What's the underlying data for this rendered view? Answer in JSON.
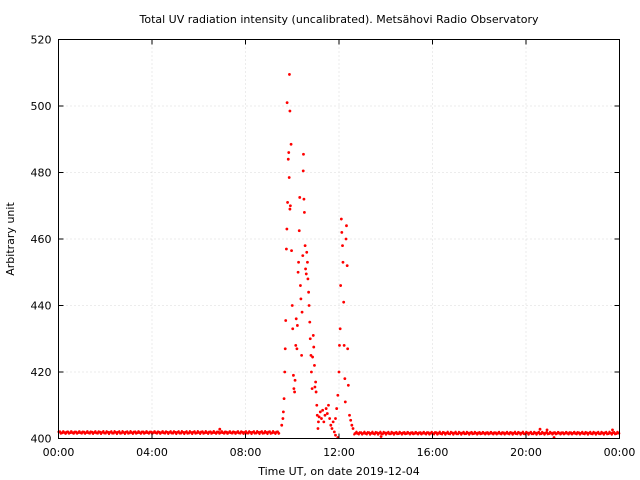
{
  "chart_data": {
    "type": "scatter",
    "title": "Total UV radiation intensity (uncalibrated). Metsähovi Radio Observatory",
    "xlabel": "Time UT, on date 2019-12-04",
    "ylabel": "Arbitrary unit",
    "xlim": [
      0,
      24
    ],
    "ylim": [
      400,
      520
    ],
    "x_ticks": [
      0,
      4,
      8,
      12,
      16,
      20,
      24
    ],
    "x_tick_labels": [
      "00:00",
      "04:00",
      "08:00",
      "12:00",
      "16:00",
      "20:00",
      "00:00"
    ],
    "y_ticks": [
      400,
      420,
      440,
      460,
      480,
      500,
      520
    ],
    "y_tick_labels": [
      "400",
      "420",
      "440",
      "460",
      "480",
      "500",
      "520"
    ],
    "grid": true,
    "marker_color": "#ff0000",
    "baseline": {
      "from_x": 0.0,
      "to_x": 9.45,
      "y": 401.8,
      "from_x_2": 12.65,
      "to_x_2": 24.0,
      "y_2": 401.6
    },
    "series": [
      {
        "values": [
          [
            6.9,
            402.8
          ],
          [
            20.6,
            402.8
          ],
          [
            20.9,
            402.6
          ],
          [
            23.7,
            402.6
          ],
          [
            21.2,
            400.3
          ],
          [
            13.8,
            400.6
          ],
          [
            9.55,
            404
          ],
          [
            9.6,
            406
          ],
          [
            9.62,
            408
          ],
          [
            9.65,
            412
          ],
          [
            9.68,
            420
          ],
          [
            9.7,
            427
          ],
          [
            9.72,
            435.5
          ],
          [
            9.75,
            457
          ],
          [
            9.77,
            463
          ],
          [
            9.8,
            471
          ],
          [
            9.83,
            484
          ],
          [
            9.85,
            486
          ],
          [
            9.87,
            478.5
          ],
          [
            9.9,
            469
          ],
          [
            9.92,
            470
          ],
          [
            9.78,
            501
          ],
          [
            9.88,
            509.5
          ],
          [
            9.9,
            498.5
          ],
          [
            9.95,
            488.5
          ],
          [
            9.97,
            456.5
          ],
          [
            10.0,
            440
          ],
          [
            10.02,
            433
          ],
          [
            10.05,
            419
          ],
          [
            10.07,
            415
          ],
          [
            10.1,
            414
          ],
          [
            10.12,
            417.5
          ],
          [
            10.15,
            428
          ],
          [
            10.17,
            436
          ],
          [
            10.2,
            427
          ],
          [
            10.22,
            434
          ],
          [
            10.25,
            450
          ],
          [
            10.27,
            453
          ],
          [
            10.3,
            462.5
          ],
          [
            10.32,
            472.5
          ],
          [
            10.35,
            446
          ],
          [
            10.37,
            442
          ],
          [
            10.4,
            425
          ],
          [
            10.42,
            438
          ],
          [
            10.45,
            455
          ],
          [
            10.47,
            480.5
          ],
          [
            10.48,
            485.5
          ],
          [
            10.5,
            472
          ],
          [
            10.52,
            468
          ],
          [
            10.55,
            458
          ],
          [
            10.57,
            451
          ],
          [
            10.6,
            449.5
          ],
          [
            10.62,
            456
          ],
          [
            10.65,
            453
          ],
          [
            10.67,
            448
          ],
          [
            10.7,
            444
          ],
          [
            10.72,
            440
          ],
          [
            10.75,
            435
          ],
          [
            10.77,
            430
          ],
          [
            10.8,
            425
          ],
          [
            10.82,
            420
          ],
          [
            10.85,
            415
          ],
          [
            10.87,
            424.5
          ],
          [
            10.9,
            431
          ],
          [
            10.92,
            427.5
          ],
          [
            10.95,
            422
          ],
          [
            10.97,
            415.5
          ],
          [
            11.0,
            417
          ],
          [
            11.02,
            414
          ],
          [
            11.05,
            410
          ],
          [
            11.07,
            407
          ],
          [
            11.1,
            403
          ],
          [
            11.12,
            405
          ],
          [
            11.15,
            406.5
          ],
          [
            11.2,
            408
          ],
          [
            11.25,
            406
          ],
          [
            11.3,
            408.5
          ],
          [
            11.35,
            405
          ],
          [
            11.4,
            407
          ],
          [
            11.45,
            409
          ],
          [
            11.5,
            407.5
          ],
          [
            11.55,
            410
          ],
          [
            11.6,
            406
          ],
          [
            11.65,
            404
          ],
          [
            11.7,
            403
          ],
          [
            11.75,
            405
          ],
          [
            11.8,
            402
          ],
          [
            11.85,
            406
          ],
          [
            11.9,
            409
          ],
          [
            11.95,
            413
          ],
          [
            12.0,
            420
          ],
          [
            12.02,
            428
          ],
          [
            12.05,
            433
          ],
          [
            12.07,
            446
          ],
          [
            12.1,
            466
          ],
          [
            12.12,
            462
          ],
          [
            12.15,
            458
          ],
          [
            12.17,
            453
          ],
          [
            12.2,
            441
          ],
          [
            12.22,
            428
          ],
          [
            12.25,
            418
          ],
          [
            12.27,
            411
          ],
          [
            12.3,
            460
          ],
          [
            12.32,
            464
          ],
          [
            12.35,
            452
          ],
          [
            12.37,
            427
          ],
          [
            12.4,
            416
          ],
          [
            12.45,
            407
          ],
          [
            12.5,
            405.5
          ],
          [
            12.55,
            404
          ],
          [
            12.6,
            403
          ],
          [
            11.85,
            401
          ],
          [
            11.95,
            400.3
          ]
        ]
      }
    ]
  }
}
